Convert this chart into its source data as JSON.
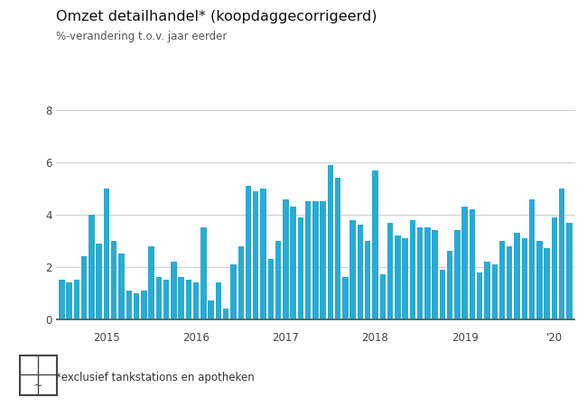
{
  "title": "Omzet detailhandel* (koopdaggecorrigeerd)",
  "subtitle": "%-verandering t.o.v. jaar eerder",
  "footnote": "*exclusief tankstations en apotheken",
  "bar_color": "#29ABD4",
  "background_color": "#e8e8e8",
  "plot_bg_color": "#ffffff",
  "yticks": [
    0,
    2,
    4,
    6,
    8
  ],
  "ylim": [
    -0.3,
    8.8
  ],
  "values": [
    1.5,
    1.4,
    1.5,
    2.4,
    4.0,
    2.9,
    5.0,
    3.0,
    2.5,
    1.1,
    1.0,
    1.1,
    2.8,
    1.6,
    1.5,
    2.2,
    1.6,
    1.5,
    1.4,
    3.5,
    0.7,
    1.4,
    0.4,
    2.1,
    2.8,
    5.1,
    4.9,
    5.0,
    2.3,
    3.0,
    4.6,
    4.3,
    3.9,
    4.5,
    4.5,
    4.5,
    5.9,
    5.4,
    1.6,
    3.8,
    3.6,
    3.0,
    5.7,
    1.7,
    3.7,
    3.2,
    3.1,
    3.8,
    3.5,
    3.5,
    3.4,
    1.9,
    2.6,
    3.4,
    4.3,
    4.2,
    1.8,
    2.2,
    2.1,
    3.0,
    2.8,
    3.3,
    3.1,
    4.6,
    3.0,
    2.7,
    3.9,
    5.0,
    3.7
  ],
  "year_positions": [
    6,
    18,
    30,
    42,
    54,
    66
  ],
  "year_labels": [
    "2015",
    "2016",
    "2017",
    "2018",
    "2019",
    "'20"
  ]
}
